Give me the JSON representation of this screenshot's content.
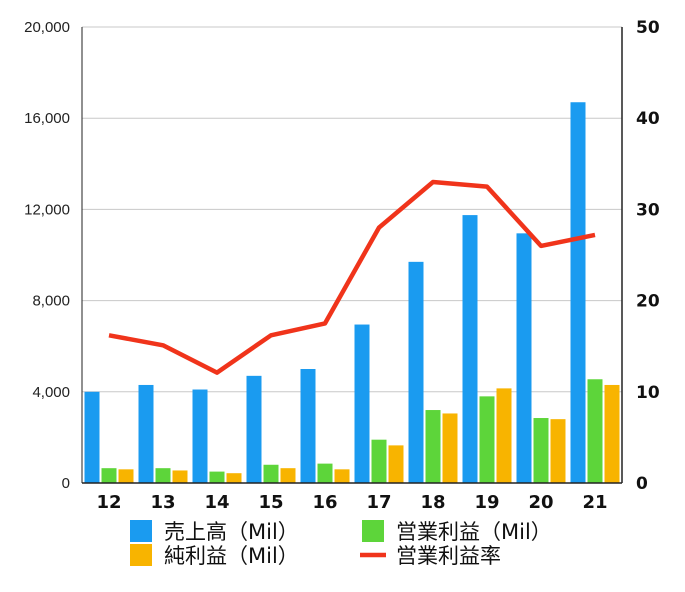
{
  "chart_data": {
    "type": "bar",
    "categories": [
      "12",
      "13",
      "14",
      "15",
      "16",
      "17",
      "18",
      "19",
      "20",
      "21"
    ],
    "series": [
      {
        "name": "売上高（Mil）",
        "kind": "bar",
        "axis": "left",
        "color": "#1a9bf0",
        "values": [
          4000,
          4300,
          4100,
          4700,
          5000,
          6950,
          9700,
          11750,
          10950,
          16700
        ]
      },
      {
        "name": "営業利益（Mil）",
        "kind": "bar",
        "axis": "left",
        "color": "#5dd53a",
        "values": [
          650,
          650,
          500,
          800,
          850,
          1900,
          3200,
          3800,
          2850,
          4550
        ]
      },
      {
        "name": "純利益（Mil）",
        "kind": "bar",
        "axis": "left",
        "color": "#f8b400",
        "values": [
          600,
          550,
          430,
          650,
          600,
          1650,
          3050,
          4150,
          2800,
          4300
        ]
      },
      {
        "name": "営業利益率",
        "kind": "line",
        "axis": "right",
        "color": "#f0341b",
        "values": [
          16.2,
          15.1,
          12.1,
          16.2,
          17.5,
          28.0,
          33.0,
          32.5,
          26.0,
          27.2
        ]
      }
    ],
    "y_left": {
      "ylim": [
        0,
        20000
      ],
      "ticks": [
        0,
        4000,
        8000,
        12000,
        16000,
        20000
      ],
      "tick_labels": [
        "0",
        "4,000",
        "8,000",
        "12,000",
        "16,000",
        "20,000"
      ]
    },
    "y_right": {
      "ylim": [
        0,
        50
      ],
      "ticks": [
        0,
        10,
        20,
        30,
        40,
        50
      ],
      "tick_labels": [
        "0",
        "10",
        "20",
        "30",
        "40",
        "50"
      ]
    },
    "grid": true,
    "legend": "bottom",
    "legend_layout": [
      [
        "売上高（Mil）",
        "営業利益（Mil）"
      ],
      [
        "純利益（Mil）",
        "営業利益率"
      ]
    ],
    "title": "",
    "xlabel": "",
    "ylabel": ""
  }
}
